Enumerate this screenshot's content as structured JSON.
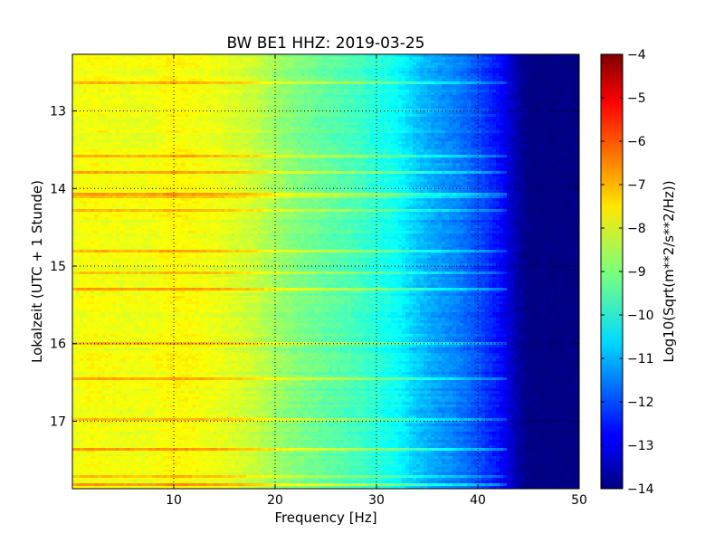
{
  "chart_data": {
    "type": "heatmap",
    "title": "BW BE1 HHZ: 2019-03-25",
    "xlabel": "Frequency [Hz]",
    "ylabel": "Lokalzeit (UTC + 1 Stunde)",
    "xlim": [
      0,
      50
    ],
    "ylim": [
      12.27,
      17.87
    ],
    "x_ticks": [
      10,
      20,
      30,
      40,
      50
    ],
    "y_ticks": [
      13,
      14,
      15,
      16,
      17
    ],
    "y_inverted": true,
    "grid": true,
    "colorbar": {
      "label": "Log10(Sqrt(m**2/s**2/Hz))",
      "range": [
        -14,
        -4
      ],
      "ticks": [
        -4,
        -5,
        -6,
        -7,
        -8,
        -9,
        -10,
        -11,
        -12,
        -13,
        -14
      ],
      "colormap": "jet"
    },
    "frequency_profile": {
      "x": [
        0,
        2,
        5,
        8,
        10,
        12,
        15,
        18,
        20,
        22,
        25,
        28,
        30,
        32,
        34,
        36,
        38,
        40,
        42,
        43,
        44,
        45,
        46,
        48,
        50
      ],
      "z": [
        -7.9,
        -7.8,
        -7.9,
        -7.9,
        -7.7,
        -7.8,
        -8.0,
        -8.3,
        -8.7,
        -9.0,
        -9.3,
        -9.6,
        -9.9,
        -10.2,
        -10.8,
        -11.2,
        -11.5,
        -12.0,
        -12.6,
        -13.1,
        -13.6,
        -14.0,
        -14.0,
        -14.0,
        -14.0
      ]
    }
  }
}
